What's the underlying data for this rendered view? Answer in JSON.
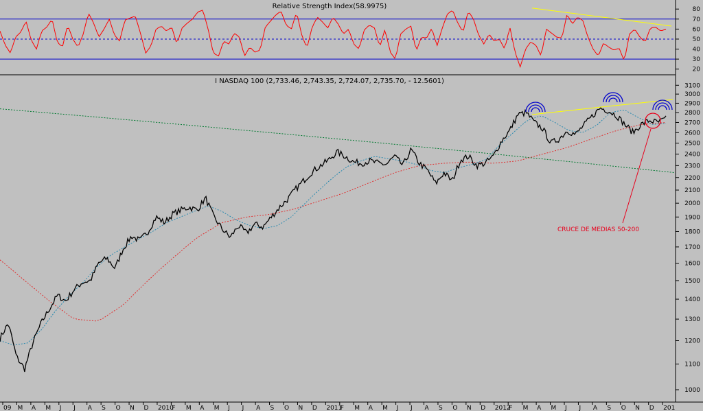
{
  "chart_data": [
    {
      "type": "line",
      "title": "Relative Strength Index(58.9975)",
      "series": [
        {
          "name": "",
          "color": "#ff0000",
          "values": [
            58,
            44,
            36,
            52,
            57,
            68,
            49,
            40,
            58,
            62,
            70,
            47,
            42,
            64,
            50,
            42,
            55,
            76,
            66,
            52,
            60,
            70,
            54,
            48,
            69,
            71,
            73,
            56,
            36,
            43,
            60,
            63,
            58,
            62,
            45,
            61,
            66,
            70,
            77,
            79,
            60,
            36,
            33,
            48,
            45,
            56,
            52,
            33,
            42,
            37,
            39,
            62,
            68,
            74,
            78,
            64,
            60,
            77,
            54,
            41,
            62,
            72,
            67,
            61,
            72,
            65,
            55,
            60,
            45,
            40,
            59,
            64,
            61,
            42,
            60,
            37,
            30,
            55,
            60,
            63,
            38,
            52,
            51,
            61,
            43,
            61,
            75,
            79,
            66,
            57,
            78,
            70,
            54,
            45,
            55,
            48,
            50,
            40,
            62,
            37,
            22,
            40,
            47,
            44,
            33,
            60,
            56,
            52,
            51,
            75,
            65,
            72,
            69,
            52,
            40,
            33,
            46,
            42,
            39,
            41,
            28,
            55,
            60,
            52,
            47,
            61,
            62,
            58,
            60
          ]
        }
      ],
      "trendline": {
        "color": "#ffff00",
        "from": [
          0.0,
          81
        ],
        "to": [
          1.0,
          63
        ]
      },
      "yticks": [
        20,
        30,
        40,
        50,
        60,
        70,
        80
      ],
      "ylim": [
        15,
        87
      ],
      "ref_lines": [
        {
          "value": 70,
          "color": "#0000cc",
          "style": "solid"
        },
        {
          "value": 50,
          "color": "#0000cc",
          "style": "dashed"
        },
        {
          "value": 30,
          "color": "#0000cc",
          "style": "solid"
        }
      ]
    },
    {
      "type": "line",
      "title": "I NASDAQ 100 (2,733.46, 2,743.35, 2,724.07, 2,735.70, - 12.5601)",
      "y_scale": "log",
      "ylim": [
        960,
        3150
      ],
      "yticks": [
        1000,
        1100,
        1200,
        1300,
        1400,
        1500,
        1600,
        1700,
        1800,
        1900,
        2000,
        2100,
        2200,
        2300,
        2400,
        2500,
        2600,
        2700,
        2800,
        2900,
        3000,
        3100
      ],
      "series": [
        {
          "name": "",
          "color": "#000000",
          "width": 1.3,
          "noisy": true,
          "values": [
            1210,
            1280,
            1130,
            1080,
            1190,
            1280,
            1350,
            1420,
            1390,
            1450,
            1490,
            1500,
            1600,
            1630,
            1570,
            1690,
            1770,
            1740,
            1800,
            1900,
            1860,
            1920,
            1950,
            1970,
            1950,
            2040,
            1900,
            1820,
            1760,
            1840,
            1790,
            1850,
            1830,
            1900,
            1970,
            2030,
            2110,
            2180,
            2250,
            2300,
            2350,
            2420,
            2380,
            2330,
            2320,
            2340,
            2320,
            2310,
            2380,
            2300,
            2440,
            2320,
            2260,
            2150,
            2240,
            2170,
            2350,
            2380,
            2300,
            2320,
            2380,
            2520,
            2620,
            2780,
            2800,
            2700,
            2640,
            2500,
            2540,
            2620,
            2580,
            2670,
            2760,
            2850,
            2820,
            2770,
            2680,
            2600,
            2680,
            2720,
            2700,
            2736
          ]
        },
        {
          "name": "",
          "color": "#2a8ab0",
          "style": "dashed",
          "values": [
            1200,
            1180,
            1190,
            1250,
            1340,
            1420,
            1490,
            1580,
            1650,
            1700,
            1750,
            1800,
            1860,
            1900,
            1940,
            1980,
            1940,
            1880,
            1840,
            1820,
            1840,
            1900,
            2000,
            2100,
            2200,
            2290,
            2340,
            2380,
            2360,
            2340,
            2310,
            2260,
            2240,
            2280,
            2310,
            2350,
            2480,
            2600,
            2720,
            2770,
            2700,
            2620,
            2600,
            2670,
            2800,
            2830,
            2750,
            2680,
            2690
          ]
        },
        {
          "name": "",
          "color": "#e03030",
          "style": "dashed",
          "values": [
            1620,
            1500,
            1390,
            1300,
            1290,
            1370,
            1500,
            1630,
            1760,
            1860,
            1900,
            1920,
            1960,
            2020,
            2080,
            2160,
            2240,
            2300,
            2320,
            2330,
            2320,
            2340,
            2400,
            2460,
            2540,
            2620,
            2680,
            2700
          ]
        },
        {
          "name": "",
          "color": "#007a30",
          "style": "dashed",
          "values": [
            2840,
            2240
          ]
        },
        {
          "name": "",
          "color": "#ffff00",
          "values": [
            2780,
            2940
          ]
        }
      ],
      "x_axis": {
        "labels": [
          "09",
          "M",
          "A",
          "M",
          "J",
          "J",
          "A",
          "S",
          "O",
          "N",
          "D",
          "2010",
          "F",
          "M",
          "A",
          "M",
          "J",
          "J",
          "A",
          "S",
          "O",
          "N",
          "D",
          "2011",
          "F",
          "M",
          "A",
          "M",
          "J",
          "J",
          "A",
          "S",
          "O",
          "N",
          "D",
          "2012",
          "F",
          "M",
          "A",
          "M",
          "J",
          "J",
          "A",
          "S",
          "O",
          "N",
          "D",
          "201"
        ]
      },
      "annotations": [
        {
          "text": "CRUCE DE MEDIAS 50-200",
          "color": "#e8001c"
        }
      ]
    }
  ]
}
